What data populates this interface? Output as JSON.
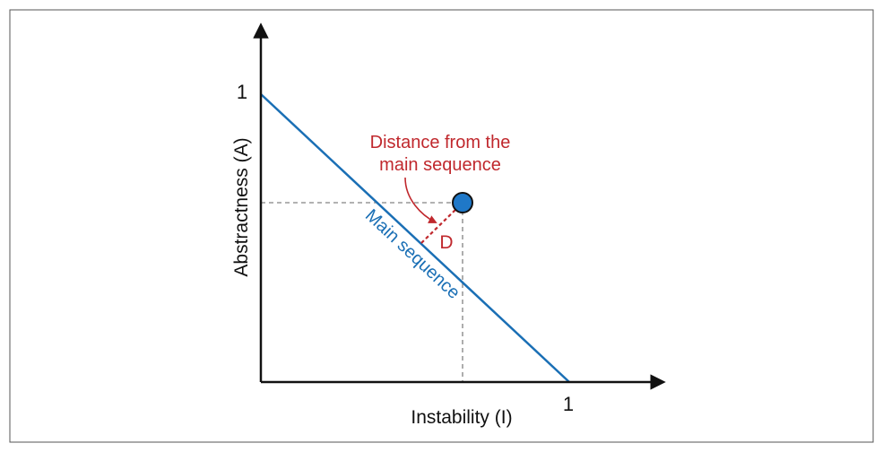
{
  "diagram": {
    "y_axis_label": "Abstractness (A)",
    "x_axis_label": "Instability (I)",
    "y_tick_label": "1",
    "x_tick_label": "1",
    "main_sequence_label": "Main sequence",
    "callout_line1": "Distance from the",
    "callout_line2": "main sequence",
    "distance_label": "D",
    "colors": {
      "axis": "#111111",
      "main_sequence": "#1a6fb5",
      "callout": "#c0282d",
      "point_fill": "#1f78c8",
      "guide": "#999999"
    }
  }
}
